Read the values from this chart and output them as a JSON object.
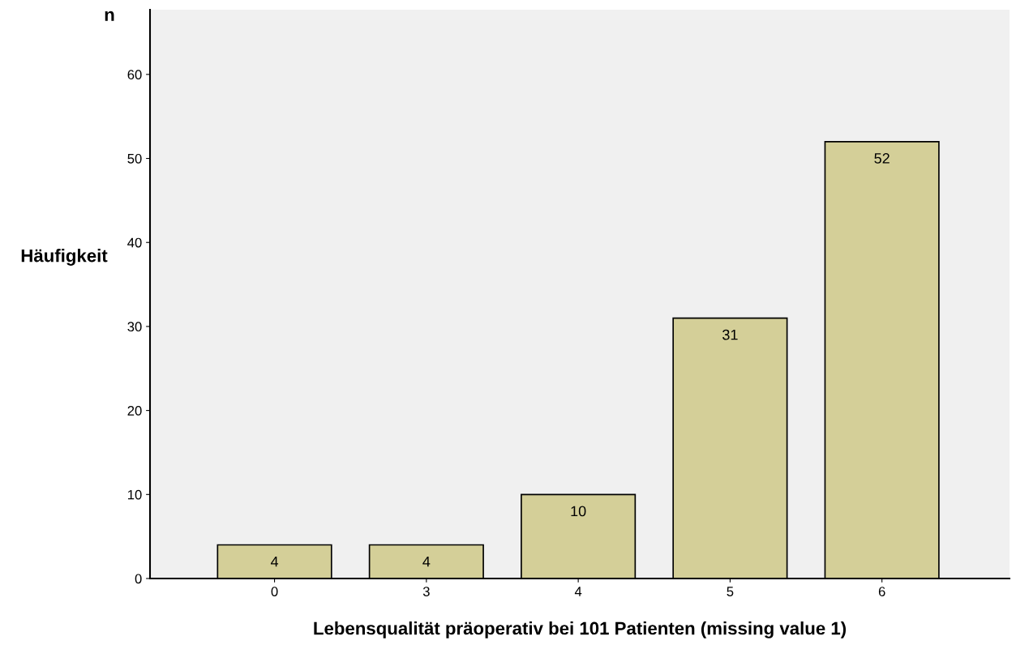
{
  "chart_data": {
    "type": "bar",
    "xlabel": "Lebensqualität präoperativ bei 101 Patienten (missing value 1)",
    "ylabel": "Häufigkeit",
    "annotations": [
      "n"
    ],
    "categories": [
      "0",
      "3",
      "4",
      "5",
      "6"
    ],
    "values": [
      4,
      4,
      10,
      31,
      52
    ],
    "color": "#d4cf98",
    "ylim": [
      0,
      67.7
    ],
    "yticks": [
      0,
      10,
      20,
      30,
      40,
      50,
      60
    ],
    "grid": false,
    "data_labels": true
  }
}
